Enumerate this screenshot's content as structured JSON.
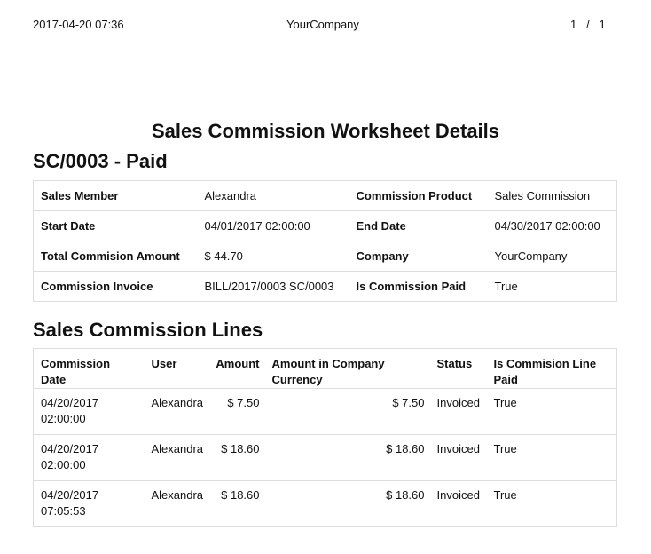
{
  "header": {
    "datetime": "2017-04-20 07:36",
    "company": "YourCompany",
    "page_current": "1",
    "page_sep": "/",
    "page_total": "1"
  },
  "title": "Sales Commission Worksheet Details",
  "subtitle": "SC/0003 - Paid",
  "info": [
    {
      "l1": "Sales Member",
      "v1": "Alexandra",
      "l2": "Commission Product",
      "v2": "Sales Commission"
    },
    {
      "l1": "Start Date",
      "v1": "04/01/2017 02:00:00",
      "l2": "End Date",
      "v2": "04/30/2017 02:00:00"
    },
    {
      "l1": "Total Commision Amount",
      "v1": "$ 44.70",
      "l2": "Company",
      "v2": "YourCompany"
    },
    {
      "l1": "Commission Invoice",
      "v1": "BILL/2017/0003 SC/0003",
      "l2": "Is Commission Paid",
      "v2": "True"
    }
  ],
  "lines_heading": "Sales Commission Lines",
  "lines": {
    "columns": [
      "Commission Date",
      "User",
      "Amount",
      "Amount in Company Currency",
      "Status",
      "Is Commision Line Paid"
    ],
    "rows": [
      {
        "date": "04/20/2017",
        "time": "02:00:00",
        "user": "Alexandra",
        "amount": "$ 7.50",
        "amount_company": "$ 7.50",
        "status": "Invoiced",
        "paid": "True"
      },
      {
        "date": "04/20/2017",
        "time": "02:00:00",
        "user": "Alexandra",
        "amount": "$ 18.60",
        "amount_company": "$ 18.60",
        "status": "Invoiced",
        "paid": "True"
      },
      {
        "date": "04/20/2017",
        "time": "07:05:53",
        "user": "Alexandra",
        "amount": "$ 18.60",
        "amount_company": "$ 18.60",
        "status": "Invoiced",
        "paid": "True"
      }
    ]
  }
}
